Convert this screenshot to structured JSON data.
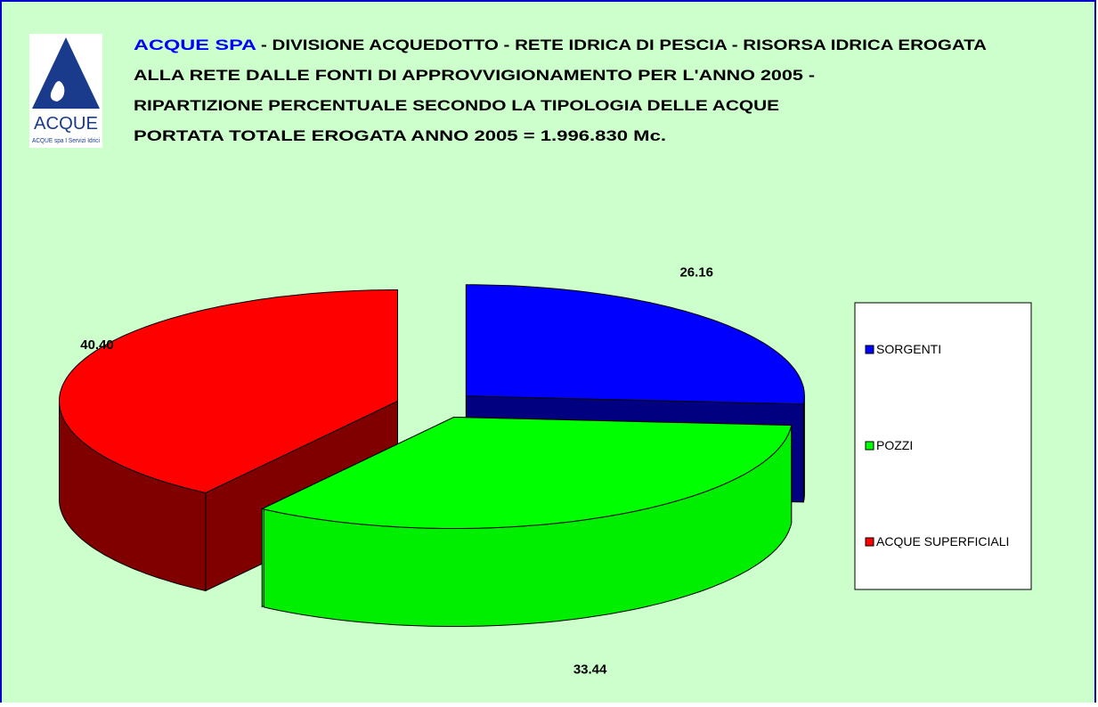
{
  "logo": {
    "name": "ACQUE",
    "tagline": "ACQUE spa I Servizi Idrici"
  },
  "chart_data": {
    "type": "pie3d",
    "title_brand": "ACQUE  SPA",
    "title": [
      "- DIVISIONE ACQUEDOTTO - RETE IDRICA DI PESCIA - RISORSA IDRICA EROGATA",
      "ALLA RETE DALLE FONTI DI APPROVVIGIONAMENTO PER L'ANNO 2005 -",
      "RIPARTIZIONE PERCENTUALE SECONDO LA TIPOLOGIA DELLE ACQUE",
      "PORTATA TOTALE EROGATA  ANNO 2005  =  1.996.830  Mc."
    ],
    "categories": [
      "SORGENTI",
      "POZZI",
      "ACQUE SUPERFICIALI"
    ],
    "values": [
      26.16,
      33.44,
      40.4
    ],
    "value_labels": [
      "26.16",
      "33.44",
      "40.40"
    ],
    "colors": [
      "#0000ff",
      "#00ff00",
      "#ff0000"
    ],
    "side_colors": [
      "#000080",
      "#00ee00",
      "#800000"
    ],
    "legend": "right"
  }
}
